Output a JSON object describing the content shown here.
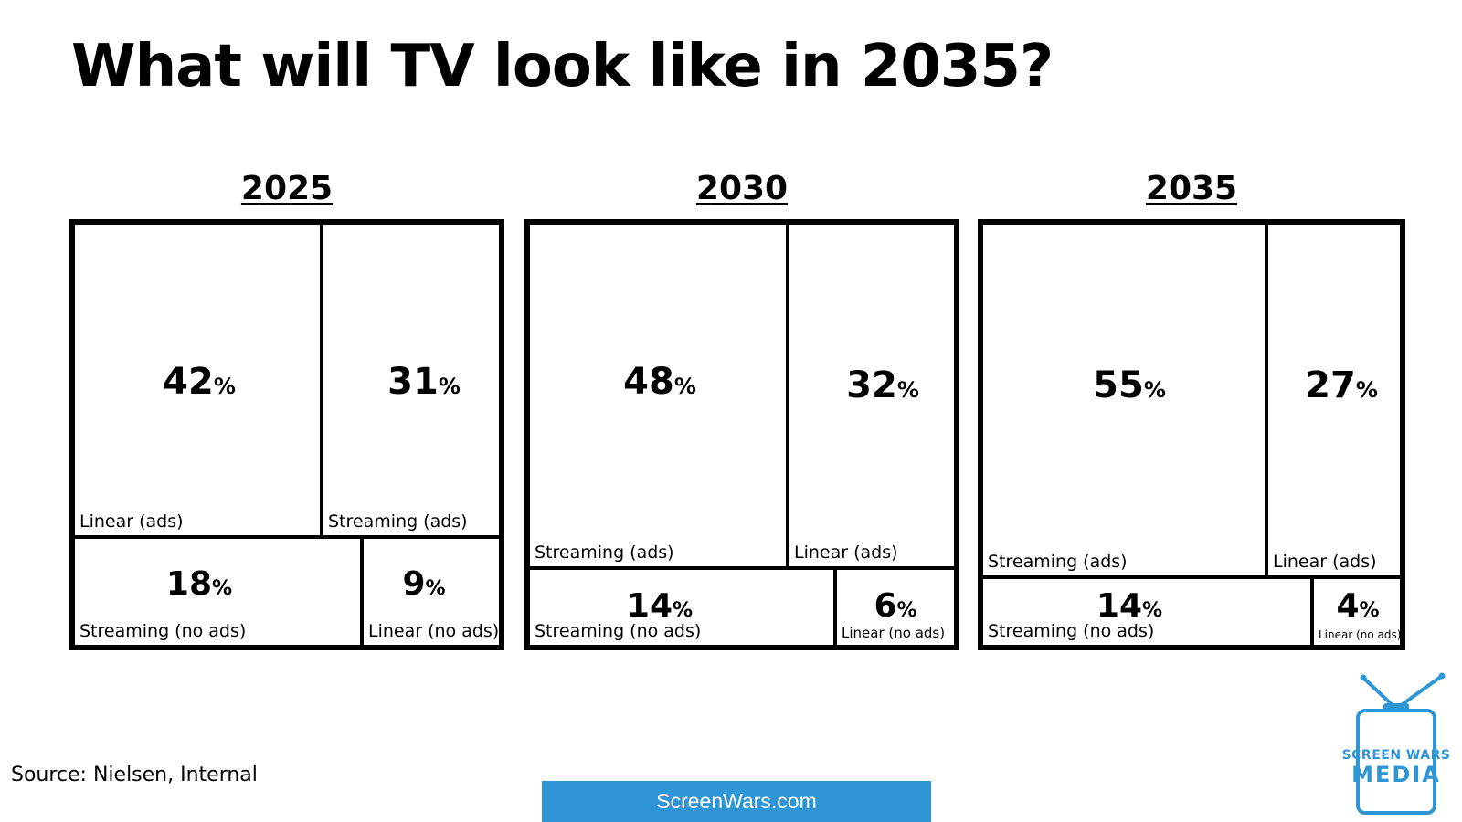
{
  "title": "What will TV look like in 2035?",
  "source": "Source: Nielsen, Internal",
  "site": "ScreenWars.com",
  "logo": {
    "line1": "SCREEN WARS",
    "line2": "MEDIA",
    "color": "#2f96d6",
    "icon": "tv-antenna-icon"
  },
  "chart_data": [
    {
      "type": "treemap",
      "title": "2025",
      "cells": [
        {
          "label": "Linear (ads)",
          "value": 42,
          "display": "42"
        },
        {
          "label": "Streaming (ads)",
          "value": 31,
          "display": "31"
        },
        {
          "label": "Streaming (no ads)",
          "value": 18,
          "display": "18"
        },
        {
          "label": "Linear (no ads)",
          "value": 9,
          "display": "9"
        }
      ],
      "unit": "%"
    },
    {
      "type": "treemap",
      "title": "2030",
      "cells": [
        {
          "label": "Streaming (ads)",
          "value": 48,
          "display": "48"
        },
        {
          "label": "Linear (ads)",
          "value": 32,
          "display": "32"
        },
        {
          "label": "Streaming (no ads)",
          "value": 14,
          "display": "14"
        },
        {
          "label": "Linear (no ads)",
          "value": 6,
          "display": "6"
        }
      ],
      "unit": "%"
    },
    {
      "type": "treemap",
      "title": "2035",
      "cells": [
        {
          "label": "Streaming (ads)",
          "value": 55,
          "display": "55"
        },
        {
          "label": "Linear (ads)",
          "value": 27,
          "display": "27"
        },
        {
          "label": "Streaming (no ads)",
          "value": 14,
          "display": "14"
        },
        {
          "label": "Linear (no ads)",
          "value": 4,
          "display": "4"
        }
      ],
      "unit": "%"
    }
  ]
}
